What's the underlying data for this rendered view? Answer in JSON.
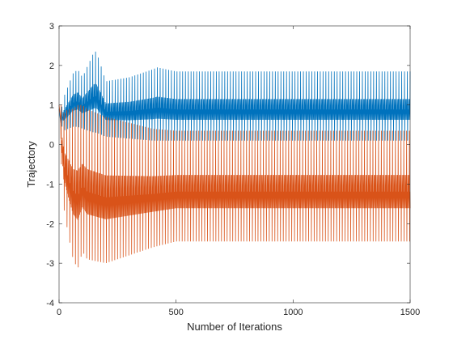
{
  "chart_data": {
    "type": "line",
    "title": "",
    "xlabel": "Number of Iterations",
    "ylabel": "Trajectory",
    "xlim": [
      0,
      1500
    ],
    "ylim": [
      -4,
      3
    ],
    "xticks": [
      0,
      500,
      1000,
      1500
    ],
    "yticks": [
      -4,
      -3,
      -2,
      -1,
      0,
      1,
      2,
      3
    ],
    "grid": false,
    "box": true,
    "description_of_series": "Two oscillating trajectories; values sampled at representative iterations (upper/lower envelope of oscillation).",
    "series": [
      {
        "color": "#0072BD",
        "x": [
          0,
          10,
          20,
          40,
          60,
          80,
          100,
          150,
          160,
          200,
          300,
          400,
          420,
          500,
          700,
          1000,
          1300,
          1500
        ],
        "upper": [
          0.9,
          0.9,
          1.2,
          1.5,
          1.8,
          1.9,
          1.7,
          2.35,
          2.35,
          1.6,
          1.7,
          1.9,
          1.95,
          1.85,
          1.85,
          1.85,
          1.85,
          1.85
        ],
        "lower": [
          0.9,
          0.5,
          0.35,
          0.4,
          0.45,
          0.45,
          0.4,
          0.3,
          0.3,
          0.2,
          0.15,
          0.1,
          0.1,
          0.1,
          0.1,
          0.1,
          0.1,
          0.1
        ]
      },
      {
        "color": "#D95319",
        "x": [
          0,
          10,
          20,
          40,
          60,
          80,
          100,
          120,
          200,
          300,
          400,
          500,
          700,
          1000,
          1300,
          1500
        ],
        "upper": [
          1.0,
          1.0,
          0.8,
          0.9,
          0.9,
          1.0,
          1.0,
          0.9,
          0.7,
          0.55,
          0.4,
          0.35,
          0.35,
          0.35,
          0.35,
          0.35
        ],
        "lower": [
          0.9,
          -0.5,
          -1.6,
          -2.3,
          -2.9,
          -3.15,
          -2.7,
          -2.9,
          -3.0,
          -2.8,
          -2.6,
          -2.45,
          -2.45,
          -2.45,
          -2.45,
          -2.45
        ]
      }
    ]
  }
}
